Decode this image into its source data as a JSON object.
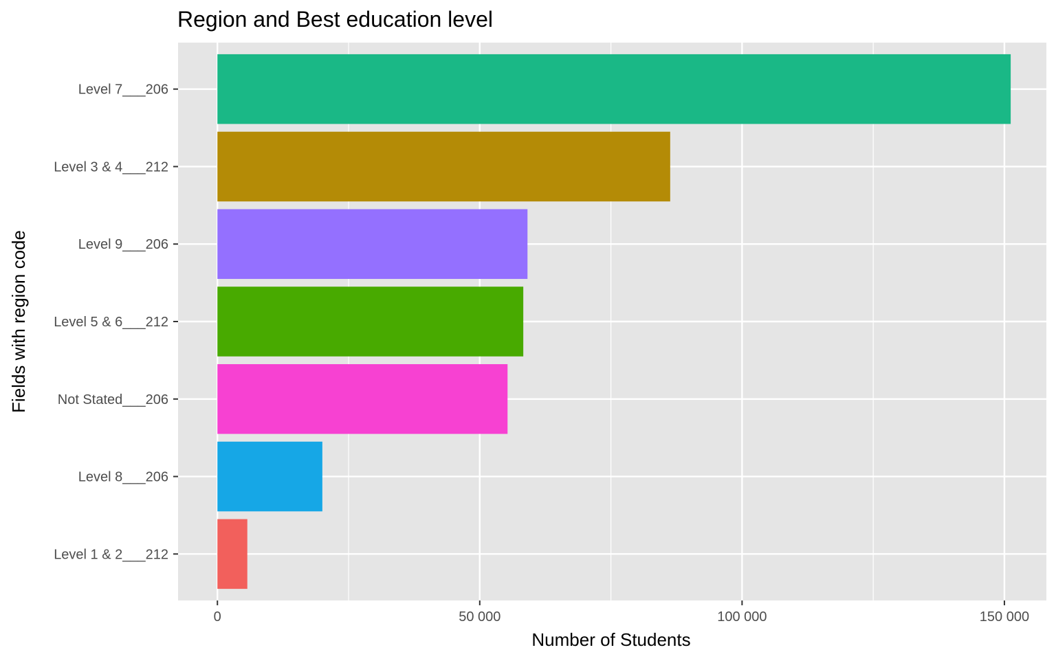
{
  "chart_data": {
    "type": "bar",
    "orientation": "horizontal",
    "title": "Region and Best education level",
    "xlabel": "Number of Students",
    "ylabel": "Fields with region code",
    "categories": [
      "Level 7___206",
      "Level 3 & 4___212",
      "Level 9___206",
      "Level 5 & 6___212",
      "Not Stated___206",
      "Level 8___206",
      "Level 1 & 2___212"
    ],
    "values": [
      151200,
      86300,
      59100,
      58300,
      55300,
      20000,
      5700
    ],
    "colors": [
      "#1ab886",
      "#b48b06",
      "#9470ff",
      "#48aa00",
      "#f741d2",
      "#16a7e6",
      "#f2605c"
    ],
    "xlim": [
      -7500,
      158000
    ],
    "xticks": [
      0,
      50000,
      100000,
      150000
    ],
    "xtick_labels": [
      "0",
      "50 000",
      "100 000",
      "150 000"
    ],
    "grid": true,
    "legend": "none",
    "panel_background": "#e5e5e5",
    "grid_color": "#ffffff"
  }
}
